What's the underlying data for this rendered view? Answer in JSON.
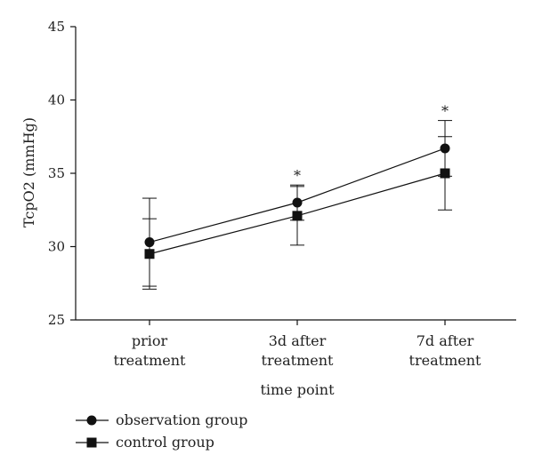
{
  "chart_data": {
    "type": "line",
    "xlabel": "time point",
    "ylabel": "TcpO2 (mmHg)",
    "ylim": [
      25,
      45
    ],
    "yticks": [
      25,
      30,
      35,
      40,
      45
    ],
    "categories": [
      [
        "prior",
        "treatment"
      ],
      [
        "3d after",
        "treatment"
      ],
      [
        "7d after",
        "treatment"
      ]
    ],
    "series": [
      {
        "name": "observation group",
        "marker": "circle",
        "values": [
          30.3,
          33.0,
          36.7
        ],
        "error": [
          3.0,
          1.2,
          1.9
        ]
      },
      {
        "name": "control group",
        "marker": "square",
        "values": [
          29.5,
          32.1,
          35.0
        ],
        "error": [
          2.4,
          2.0,
          2.5
        ]
      }
    ],
    "significance": [
      "",
      "*",
      "*"
    ],
    "grid": false,
    "legend_position": "bottom-left",
    "color": "#111111"
  }
}
